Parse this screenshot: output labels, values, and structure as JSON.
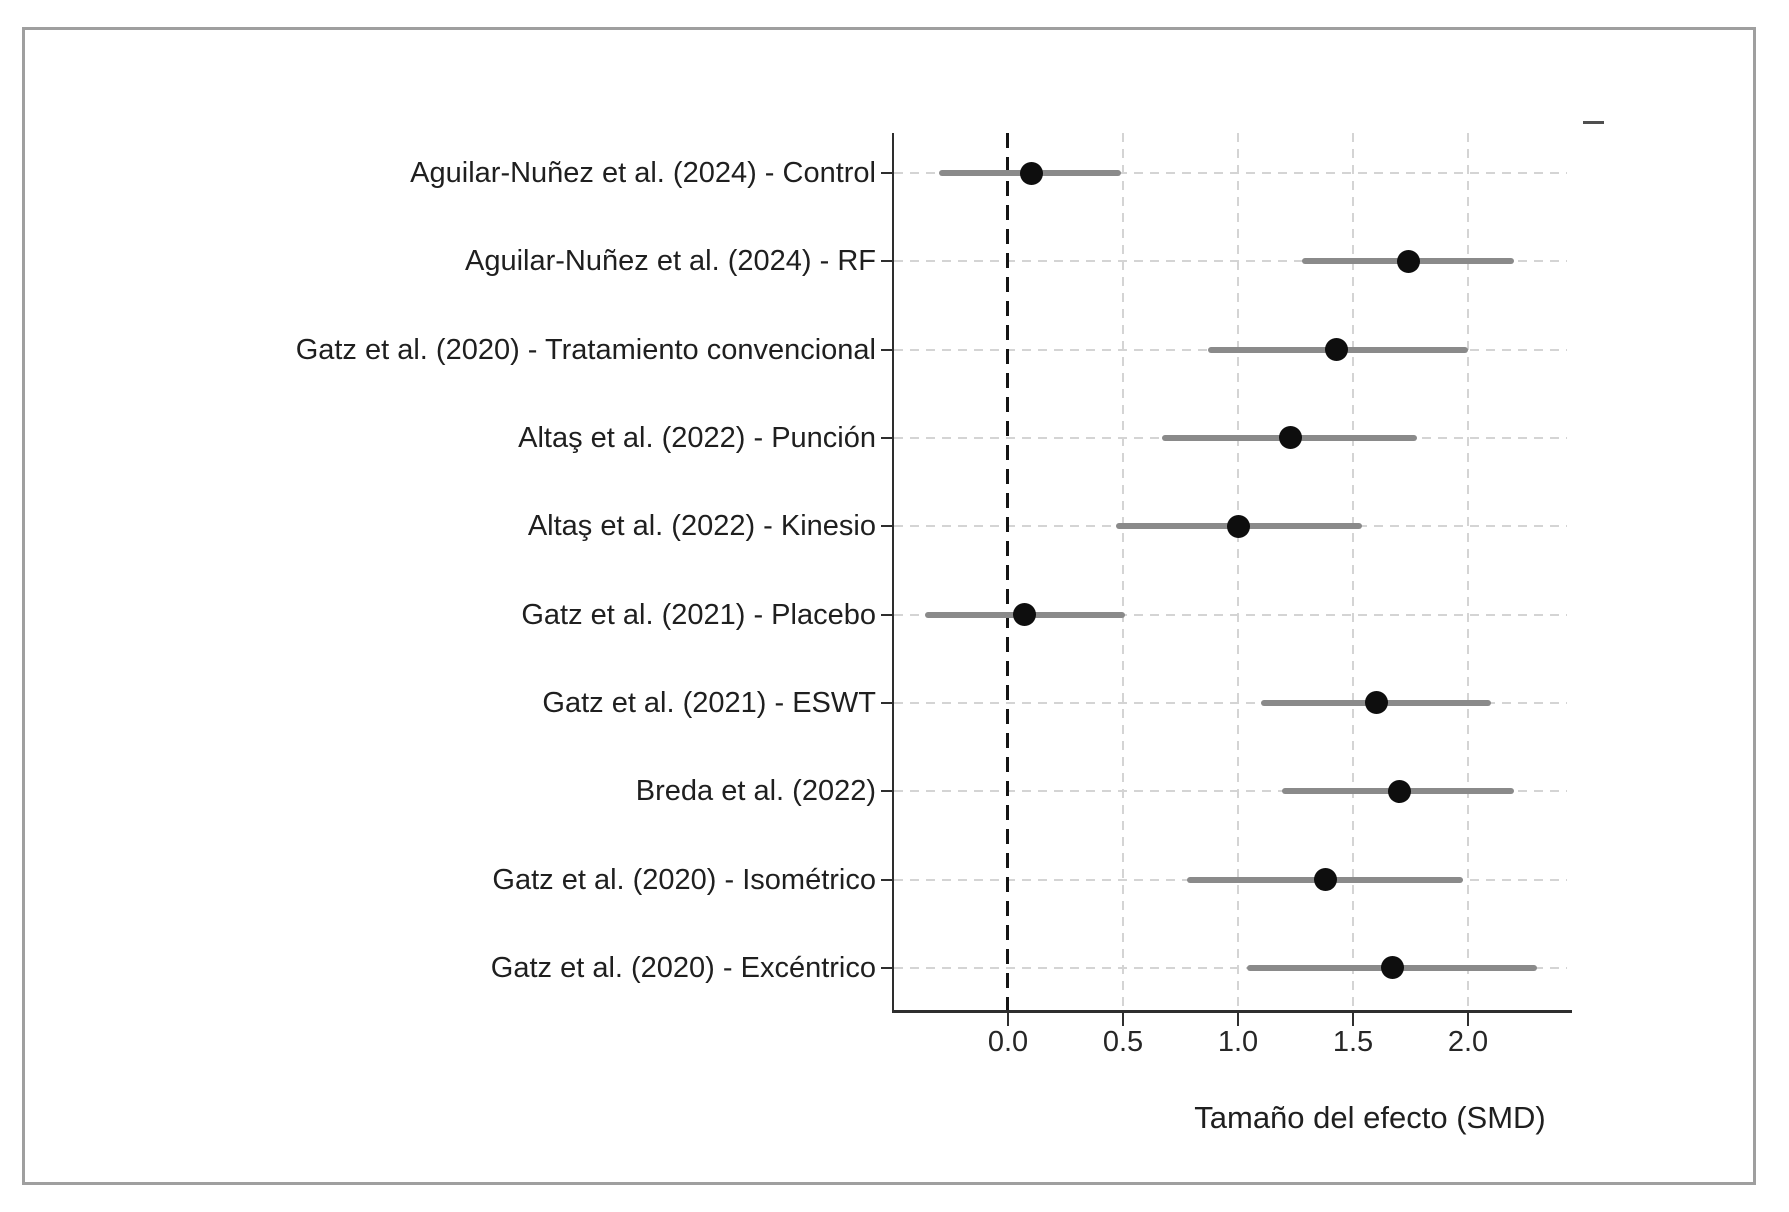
{
  "figure": {
    "background_color": "#ffffff",
    "frame_border_color": "#9f9f9f"
  },
  "chart_data": {
    "type": "scatter",
    "subtype": "forest_plot",
    "title": "",
    "xlabel": "Tamaño del efecto (SMD)",
    "ylabel": "",
    "xlim": [
      -0.5,
      2.43
    ],
    "grid": true,
    "gridline_style": "dashed",
    "reference_line": 0.0,
    "reference_line_style": "dashed-black-vertical",
    "legend": "none",
    "x_ticks": [
      {
        "value": 0.0,
        "label": "0.0"
      },
      {
        "value": 0.5,
        "label": "0.5"
      },
      {
        "value": 1.0,
        "label": "1.0"
      },
      {
        "value": 1.5,
        "label": "1.5"
      },
      {
        "value": 2.0,
        "label": "2.0"
      }
    ],
    "studies": [
      {
        "label": "Aguilar-Nuñez et al. (2024) - Control",
        "effect": 0.1,
        "ci_lower": -0.3,
        "ci_upper": 0.49
      },
      {
        "label": "Aguilar-Nuñez et al. (2024) - RF",
        "effect": 1.74,
        "ci_lower": 1.28,
        "ci_upper": 2.2
      },
      {
        "label": "Gatz et al. (2020) - Tratamiento convencional",
        "effect": 1.43,
        "ci_lower": 0.87,
        "ci_upper": 2.0
      },
      {
        "label": "Altaş et al. (2022) - Punción",
        "effect": 1.23,
        "ci_lower": 0.67,
        "ci_upper": 1.78
      },
      {
        "label": "Altaş et al. (2022) - Kinesio",
        "effect": 1.0,
        "ci_lower": 0.47,
        "ci_upper": 1.54
      },
      {
        "label": "Gatz et al. (2021) - Placebo",
        "effect": 0.07,
        "ci_lower": -0.36,
        "ci_upper": 0.51
      },
      {
        "label": "Gatz et al. (2021) - ESWT",
        "effect": 1.6,
        "ci_lower": 1.1,
        "ci_upper": 2.1
      },
      {
        "label": "Breda et al. (2022)",
        "effect": 1.7,
        "ci_lower": 1.19,
        "ci_upper": 2.2
      },
      {
        "label": "Gatz et al. (2020) - Isométrico",
        "effect": 1.38,
        "ci_lower": 0.78,
        "ci_upper": 1.98
      },
      {
        "label": "Gatz et al. (2020) - Excéntrico",
        "effect": 1.67,
        "ci_lower": 1.04,
        "ci_upper": 2.3
      }
    ],
    "colors": {
      "point": "#0e0e0e",
      "error_bar": "#8a8a8a",
      "reference_line": "#141414",
      "gridline": "#d4d4d4",
      "axis": "#2e2e2e",
      "text": "#1f1f1f"
    }
  }
}
